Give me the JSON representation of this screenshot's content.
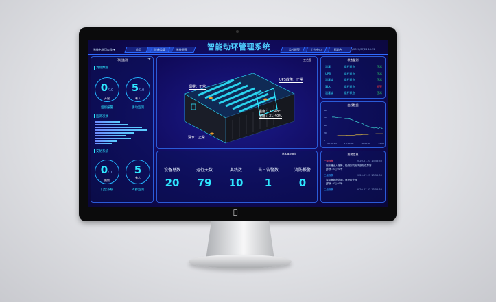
{
  "header": {
    "system_name": "系统名称可以改",
    "title": "智能动环管理系统",
    "datetime": "2020/07/24 18:52",
    "tabs_left": [
      "首页",
      "设备监管",
      "系统配置"
    ],
    "tabs_right": [
      "监控报警",
      "个人中心",
      "帮助台"
    ],
    "active_tab": "设备监管"
  },
  "left_panel": {
    "title": "环境监测",
    "fire": {
      "heading": "消防数据",
      "c1": {
        "value": "0",
        "max": "/10",
        "label": "开启",
        "caption": "烟感报警"
      },
      "c2": {
        "value": "5",
        "max": "/10",
        "label": "有人",
        "caption": "手动监测"
      }
    },
    "monitor": {
      "heading": "监测次数",
      "bars": [
        0.45,
        0.6,
        0.85,
        0.95,
        0.7,
        0.55,
        0.65,
        0.4,
        0.3
      ]
    },
    "security": {
      "heading": "安防系统",
      "c1": {
        "value": "0",
        "max": "/10",
        "label": "报警",
        "caption": "门禁系统"
      },
      "c2": {
        "value": "5",
        "label": "有人",
        "caption": "人群监测"
      }
    }
  },
  "center": {
    "title": "工艺图",
    "callouts": {
      "smoke": "烟雾：正常",
      "ups": "UPS故障：正常",
      "temp": "温度：31.48°C",
      "humidity": "湿度：31.40%",
      "leak": "漏水：正常"
    },
    "overview_title": "基本情况概览",
    "stats": [
      {
        "label": "设备总数",
        "value": "20"
      },
      {
        "label": "运行天数",
        "value": "79"
      },
      {
        "label": "离线数",
        "value": "10"
      },
      {
        "label": "当日告警数",
        "value": "1"
      },
      {
        "label": "消防报警",
        "value": "0"
      }
    ]
  },
  "right_panel": {
    "status_title": "状态监测",
    "status_rows": [
      {
        "name": "温湿",
        "state": "运行状态",
        "result": "正常",
        "color": "#2fe06a"
      },
      {
        "name": "UPS",
        "state": "运行状态",
        "result": "正常",
        "color": "#2fe06a"
      },
      {
        "name": "温湿度",
        "state": "运行状态",
        "result": "正常",
        "color": "#2fe06a"
      },
      {
        "name": "漏水",
        "state": "运行状态",
        "result": "报警",
        "color": "#ff3b3b"
      },
      {
        "name": "温湿度",
        "state": "运行状态",
        "result": "正常",
        "color": "#2fe06a"
      }
    ],
    "chart_title": "曲线数据",
    "chart": {
      "y_ticks": [
        "80",
        "60",
        "40",
        "20",
        "0"
      ],
      "x_ticks": [
        "00:00:14",
        "12:00:00",
        "00:00:00",
        "12:00:00"
      ],
      "series_a": [
        62,
        62,
        61,
        60,
        60,
        59,
        58,
        58,
        57,
        55,
        52,
        50,
        48,
        46,
        44,
        40,
        38,
        36,
        34,
        33,
        34,
        32,
        35,
        30
      ],
      "series_b": [
        12,
        12,
        12,
        13,
        13,
        13,
        13,
        14,
        14,
        14,
        14,
        15,
        15,
        15,
        16,
        16,
        16,
        17,
        17,
        17,
        18,
        18,
        18,
        18
      ]
    },
    "alerts_title": "报警信息",
    "alerts": [
      {
        "level": "一级报警",
        "time": "2020-07-23 13:55:50",
        "text": "服务器出入报警，检测到机柜内部存在异常",
        "sub": "[机房-01] 01号"
      },
      {
        "level": "二级报警",
        "time": "2020-07-23 13:55:50",
        "text": "温湿度超出范围，请及时处理",
        "sub": "[机房-01] 01号"
      },
      {
        "level": "二级报警",
        "time": "2020-07-23 13:55:50",
        "text": "",
        "sub": ""
      }
    ]
  }
}
